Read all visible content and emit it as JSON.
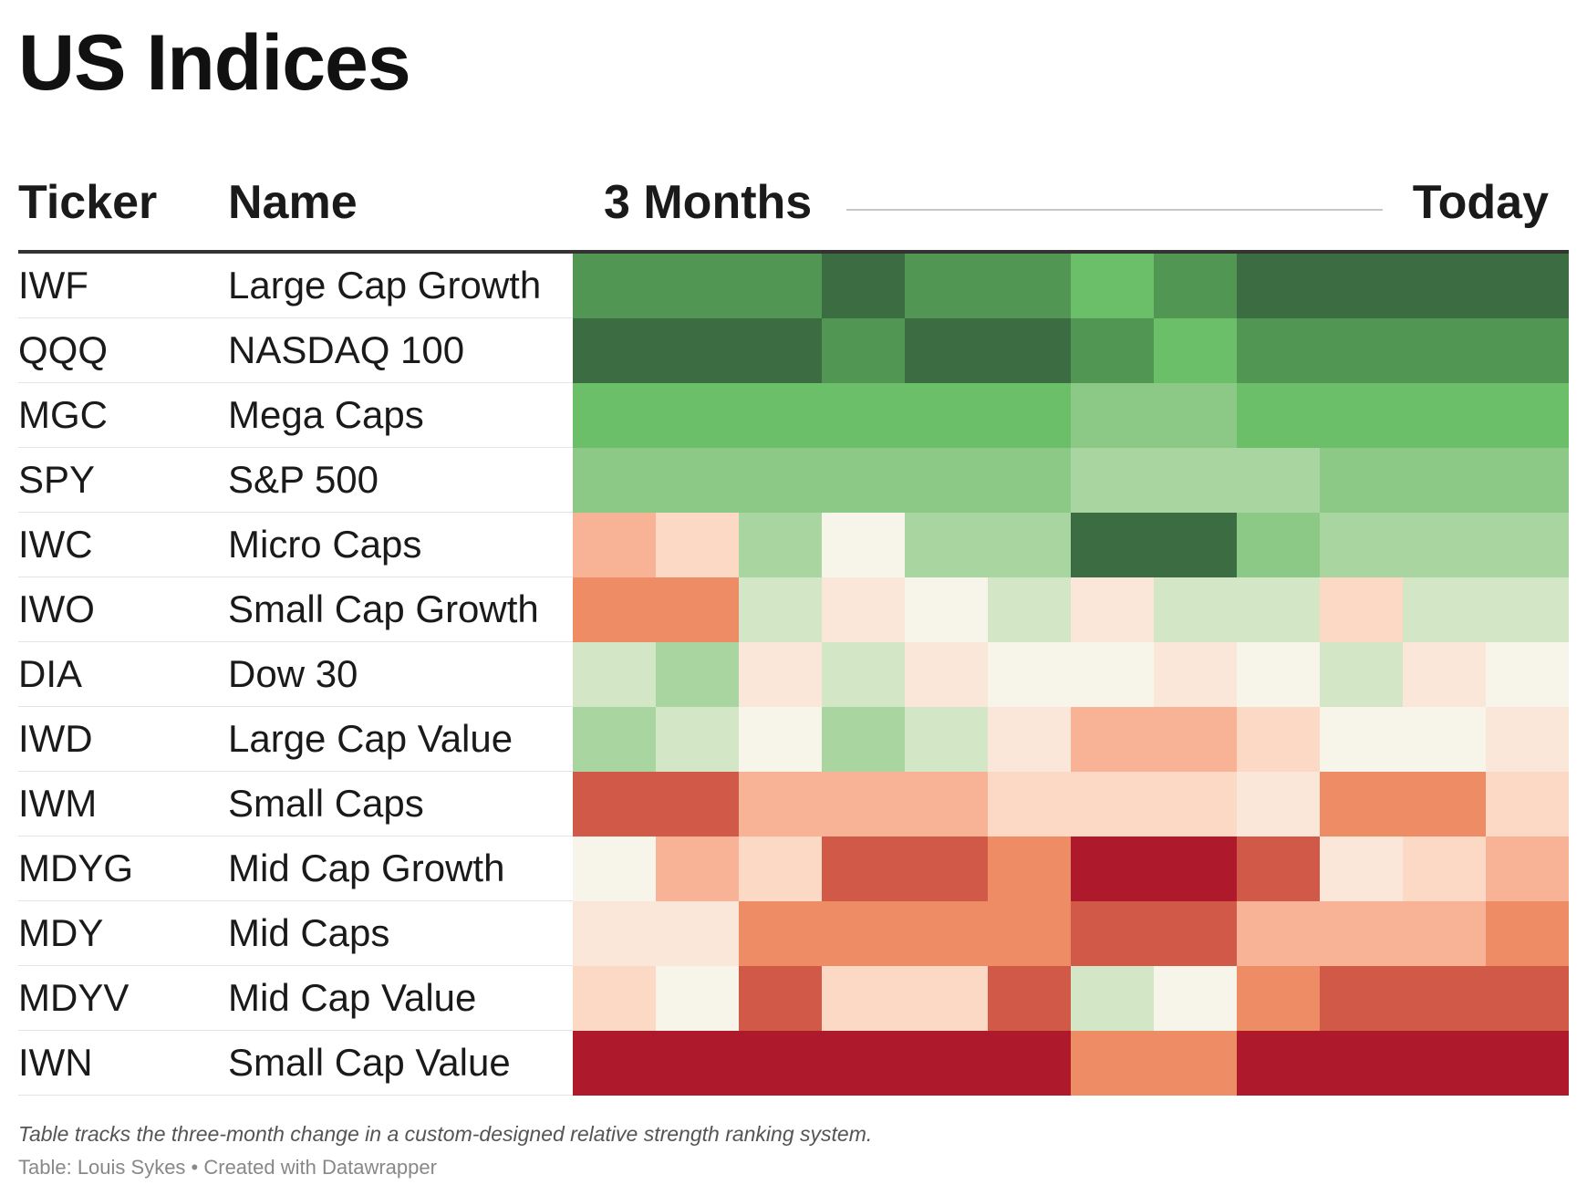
{
  "title": "US Indices",
  "columns": {
    "ticker": "Ticker",
    "name": "Name",
    "start": "3 Months",
    "end": "Today"
  },
  "footnote": "Table tracks the three-month change in a custom-designed relative strength ranking system.",
  "source": "Table: Louis Sykes • Created with Datawrapper",
  "colors": {
    "0": "#ae1a2b",
    "1": "#d15947",
    "2": "#ee8c66",
    "3": "#f8b396",
    "4": "#fcd9c5",
    "5": "#fae7d9",
    "6": "#f7f5e9",
    "7": "#d3e6c6",
    "8": "#a9d6a0",
    "9": "#8cc986",
    "10": "#6bbf68",
    "11": "#519653",
    "12": "#3c6c42"
  },
  "chart_data": {
    "type": "heatmap",
    "x_start_label": "3 Months",
    "x_end_label": "Today",
    "periods": 12,
    "rows": [
      {
        "ticker": "IWF",
        "name": "Large Cap Growth",
        "values": [
          11,
          11,
          11,
          12,
          11,
          11,
          10,
          11,
          12,
          12,
          12,
          12
        ]
      },
      {
        "ticker": "QQQ",
        "name": "NASDAQ 100",
        "values": [
          12,
          12,
          12,
          11,
          12,
          12,
          11,
          10,
          11,
          11,
          11,
          11
        ]
      },
      {
        "ticker": "MGC",
        "name": "Mega Caps",
        "values": [
          10,
          10,
          10,
          10,
          10,
          10,
          9,
          9,
          10,
          10,
          10,
          10
        ]
      },
      {
        "ticker": "SPY",
        "name": "S&P 500",
        "values": [
          9,
          9,
          9,
          9,
          9,
          9,
          8,
          8,
          8,
          9,
          9,
          9
        ]
      },
      {
        "ticker": "IWC",
        "name": "Micro Caps",
        "values": [
          3,
          4,
          8,
          6,
          8,
          8,
          12,
          12,
          9,
          8,
          8,
          8
        ]
      },
      {
        "ticker": "IWO",
        "name": "Small Cap Growth",
        "values": [
          2,
          2,
          7,
          5,
          6,
          7,
          5,
          7,
          7,
          4,
          7,
          7
        ]
      },
      {
        "ticker": "DIA",
        "name": "Dow 30",
        "values": [
          7,
          8,
          5,
          7,
          5,
          6,
          6,
          5,
          6,
          7,
          5,
          6
        ]
      },
      {
        "ticker": "IWD",
        "name": "Large Cap Value",
        "values": [
          8,
          7,
          6,
          8,
          7,
          5,
          3,
          3,
          4,
          6,
          6,
          5
        ]
      },
      {
        "ticker": "IWM",
        "name": "Small Caps",
        "values": [
          1,
          1,
          3,
          3,
          3,
          4,
          4,
          4,
          5,
          2,
          2,
          4
        ]
      },
      {
        "ticker": "MDYG",
        "name": "Mid Cap Growth",
        "values": [
          6,
          3,
          4,
          1,
          1,
          2,
          0,
          0,
          1,
          5,
          4,
          3
        ]
      },
      {
        "ticker": "MDY",
        "name": "Mid Caps",
        "values": [
          5,
          5,
          2,
          2,
          2,
          2,
          1,
          1,
          3,
          3,
          3,
          2
        ]
      },
      {
        "ticker": "MDYV",
        "name": "Mid Cap Value",
        "values": [
          4,
          6,
          1,
          4,
          4,
          1,
          7,
          6,
          2,
          1,
          1,
          1
        ]
      },
      {
        "ticker": "IWN",
        "name": "Small Cap Value",
        "values": [
          0,
          0,
          0,
          0,
          0,
          0,
          2,
          2,
          0,
          0,
          0,
          0
        ]
      }
    ]
  }
}
